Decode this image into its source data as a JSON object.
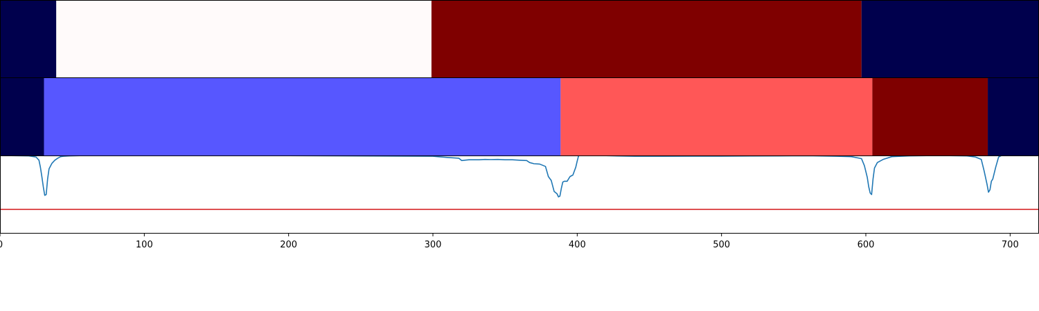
{
  "chart_data": [
    {
      "type": "heatmap",
      "panel": "top-bar",
      "x_range": [
        0,
        720
      ],
      "segments": [
        {
          "start": 0,
          "end": 39,
          "color": "#00004d"
        },
        {
          "start": 39,
          "end": 299,
          "color": "#fffafa"
        },
        {
          "start": 299,
          "end": 597,
          "color": "#7f0000"
        },
        {
          "start": 597,
          "end": 720,
          "color": "#00004d"
        }
      ]
    },
    {
      "type": "heatmap",
      "panel": "middle-bar",
      "x_range": [
        0,
        720
      ],
      "segments": [
        {
          "start": 0,
          "end": 30.5,
          "color": "#00004d"
        },
        {
          "start": 30.5,
          "end": 388.5,
          "color": "#5757ff"
        },
        {
          "start": 388.5,
          "end": 604.5,
          "color": "#ff5757"
        },
        {
          "start": 604.5,
          "end": 684.5,
          "color": "#7f0000"
        },
        {
          "start": 684.5,
          "end": 720,
          "color": "#00004d"
        }
      ]
    },
    {
      "type": "line",
      "panel": "bottom-line",
      "x_range": [
        0,
        720
      ],
      "y_range": [
        0,
        1
      ],
      "threshold": {
        "value": 0.31,
        "color": "#d62728"
      },
      "line_color": "#1f77b4",
      "series": [
        {
          "x": [
            0,
            20,
            25,
            27,
            28,
            29,
            30,
            31,
            32,
            33,
            34,
            36,
            38,
            40,
            42,
            44,
            48,
            60,
            100,
            200,
            300,
            310,
            318,
            320,
            322,
            325,
            328,
            332,
            336,
            340,
            345,
            350,
            355,
            360,
            365,
            367,
            370,
            374,
            378,
            380,
            382,
            384,
            386,
            387,
            388,
            389,
            390,
            391,
            393,
            395,
            397,
            399,
            400,
            401,
            403,
            420,
            440,
            460,
            480,
            500,
            520,
            540,
            560,
            580,
            590,
            597,
            599,
            601,
            602,
            603,
            604,
            605,
            606,
            608,
            612,
            618,
            630,
            650,
            670,
            676,
            680,
            682,
            684,
            685,
            686,
            687,
            688,
            690,
            692,
            694,
            700,
            720
          ],
          "y": [
            1.0,
            0.995,
            0.98,
            0.94,
            0.85,
            0.73,
            0.6,
            0.49,
            0.5,
            0.7,
            0.83,
            0.9,
            0.94,
            0.965,
            0.985,
            0.99,
            0.995,
            1.0,
            1.0,
            0.998,
            0.99,
            0.975,
            0.965,
            0.935,
            0.94,
            0.945,
            0.945,
            0.945,
            0.95,
            0.948,
            0.95,
            0.945,
            0.945,
            0.94,
            0.935,
            0.91,
            0.895,
            0.89,
            0.86,
            0.73,
            0.68,
            0.54,
            0.51,
            0.47,
            0.48,
            0.58,
            0.66,
            0.67,
            0.67,
            0.73,
            0.75,
            0.85,
            0.93,
            1.0,
            1.0,
            0.998,
            0.99,
            0.99,
            0.992,
            0.992,
            0.994,
            0.995,
            0.997,
            0.99,
            0.985,
            0.96,
            0.87,
            0.72,
            0.6,
            0.52,
            0.5,
            0.7,
            0.84,
            0.91,
            0.95,
            0.985,
            0.995,
            1.0,
            0.995,
            0.98,
            0.95,
            0.8,
            0.63,
            0.53,
            0.56,
            0.67,
            0.7,
            0.85,
            0.98,
            1.0,
            1.0,
            1.0
          ]
        }
      ]
    }
  ],
  "x_axis": {
    "ticks": [
      0,
      100,
      200,
      300,
      400,
      500,
      600,
      700
    ],
    "tick_labels": [
      "0",
      "100",
      "200",
      "300",
      "400",
      "500",
      "600",
      "700"
    ]
  }
}
